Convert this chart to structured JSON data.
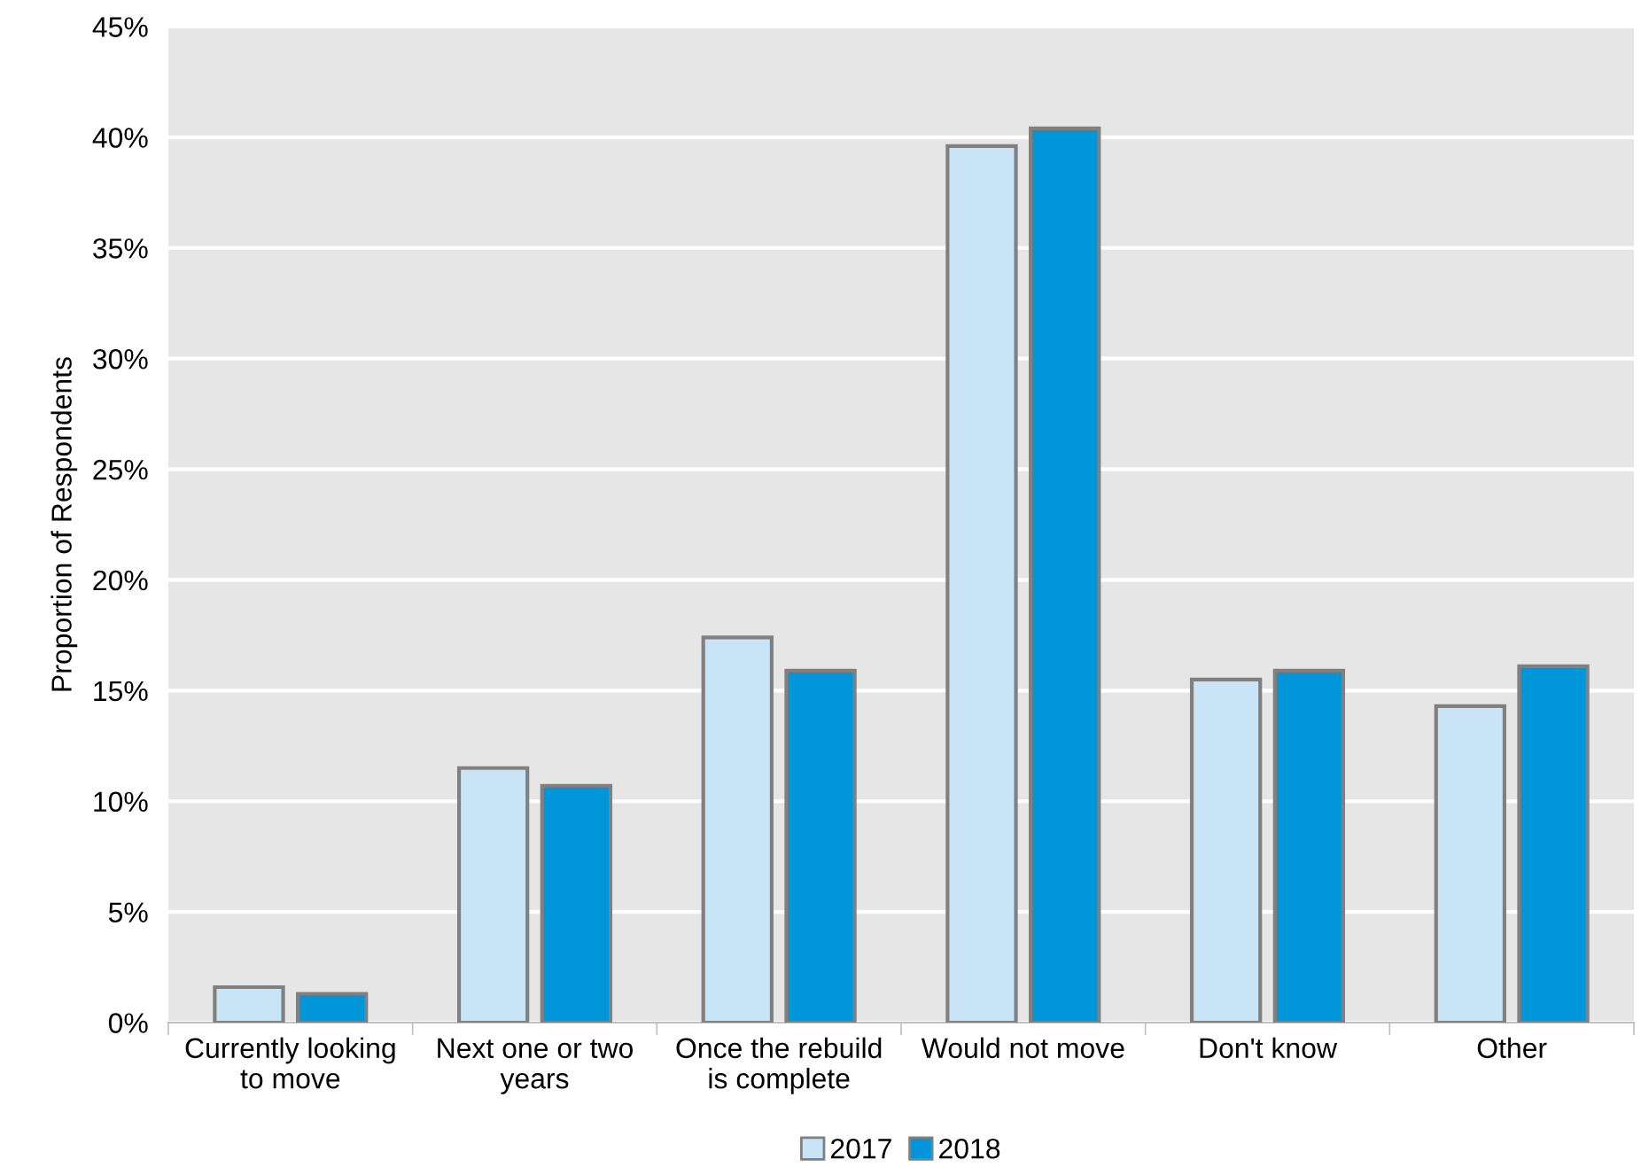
{
  "chart_data": {
    "type": "bar",
    "ylabel": "Proportion of Respondents",
    "categories": [
      "Currently looking\nto move",
      "Next one or two\nyears",
      "Once the rebuild\nis complete",
      "Would not move",
      "Don't know",
      "Other"
    ],
    "series": [
      {
        "name": "2017",
        "color": "#c9e3f7",
        "values": [
          1.6,
          11.5,
          17.4,
          39.6,
          15.5,
          14.3
        ]
      },
      {
        "name": "2018",
        "color": "#0096d9",
        "values": [
          1.3,
          10.7,
          15.9,
          40.4,
          15.9,
          16.1
        ]
      }
    ],
    "ylim": [
      0,
      45
    ],
    "yticks": [
      {
        "value": 0,
        "label": "0%"
      },
      {
        "value": 5,
        "label": "5%"
      },
      {
        "value": 10,
        "label": "10%"
      },
      {
        "value": 15,
        "label": "15%"
      },
      {
        "value": 20,
        "label": "20%"
      },
      {
        "value": 25,
        "label": "25%"
      },
      {
        "value": 30,
        "label": "30%"
      },
      {
        "value": 35,
        "label": "35%"
      },
      {
        "value": 40,
        "label": "40%"
      },
      {
        "value": 45,
        "label": "45%"
      }
    ],
    "grid": "y",
    "legend": "bottom"
  }
}
